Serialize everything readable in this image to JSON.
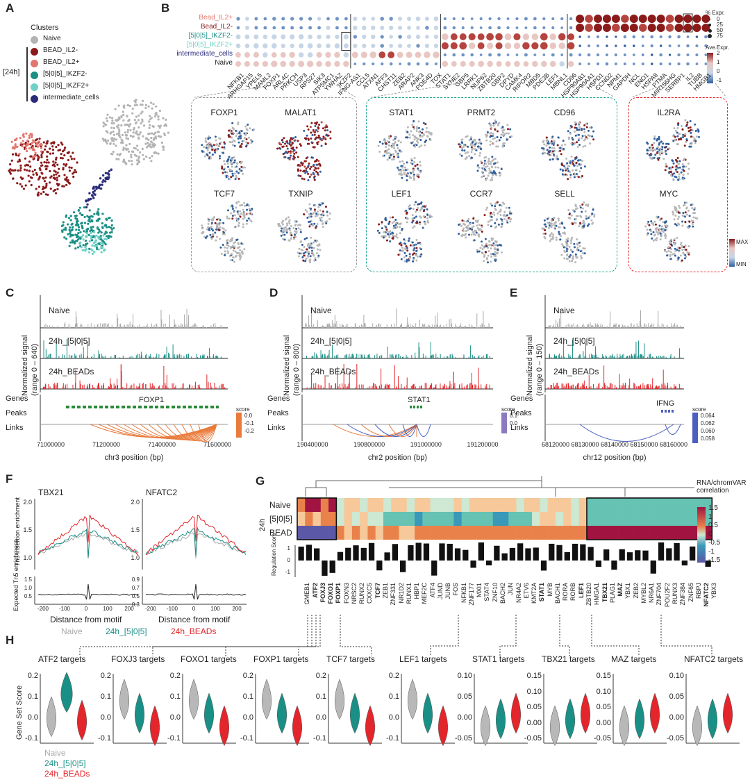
{
  "panel_letters": [
    "A",
    "B",
    "C",
    "D",
    "E",
    "F",
    "G",
    "H"
  ],
  "colors": {
    "naive": "#b3b3b3",
    "bead_il2m": "#8b1a1a",
    "bead_il2p": "#e3766e",
    "ikzf2m": "#1a8f85",
    "ikzf2p": "#6fd0c6",
    "intermediate": "#2b2d7a",
    "teal": "#1a8f85",
    "red": "#e3262b",
    "blue": "#4b5fbf",
    "orange": "#e97b3b"
  },
  "panelA": {
    "legend_title": "Clusters",
    "group_label": "[24h]",
    "items": [
      {
        "label": "Naive",
        "color": "#b3b3b3"
      },
      {
        "label": "BEAD_IL2-",
        "color": "#8b1a1a"
      },
      {
        "label": "BEAD_IL2+",
        "color": "#e3766e"
      },
      {
        "label": "[5|0|5]_IKZF2-",
        "color": "#1a8f85"
      },
      {
        "label": "[5|0|5]_IKZF2+",
        "color": "#6fd0c6"
      },
      {
        "label": "intermediate_cells",
        "color": "#2b2d7a"
      }
    ]
  },
  "panelB": {
    "row_labels": [
      "Bead_IL2+",
      "Bead_IL2-",
      "[5|0|5]_IKZF2-",
      "[5|0|5]_IKZF2+",
      "intermediate_cells",
      "Naive"
    ],
    "row_colors": [
      "#e3766e",
      "#8b1a1a",
      "#1a8f85",
      "#6fd0c6",
      "#2b2d7a",
      "#222222"
    ],
    "genes": [
      "NFKB1",
      "ARHGAP15",
      "YPEL5",
      "MAML2",
      "FOXP1",
      "ARL4C",
      "PRKCH",
      "USP3",
      "RPS27",
      "SIK3",
      "ATP5MC1",
      "YWHAZ",
      "IKZF2",
      "IFNG-AS1",
      "CCL5",
      "ATXN1",
      "AFF3",
      "CHST11",
      "ZEB2",
      "ARAP2",
      "ANK3",
      "PDE4D",
      "TOX",
      "STAT1",
      "SYNE2",
      "GBP5",
      "LRRK1",
      "NUP62",
      "ZBTB20",
      "GBP2",
      "DPYD",
      "CAMK4",
      "RIPOR2",
      "MBD5",
      "PDE3B",
      "LEF1",
      "MBNL1",
      "CD96",
      "HSP90AB1",
      "HSP90AA1",
      "HSPD1",
      "CCND2",
      "NPM1",
      "GAPDH",
      "NCL",
      "ENO1",
      "HSPA8",
      "PTMA",
      "MIR155HG",
      "SERBP1",
      "IL2",
      "TUBB",
      "HMGB1"
    ],
    "legend_size_title": "% Expr.",
    "legend_size_values": [
      "0",
      "25",
      "50",
      "75"
    ],
    "legend_color_title": "Ave.Expr.",
    "legend_color_ticks": [
      "2",
      "1",
      "0",
      "-1"
    ],
    "umap_genes_group1": [
      "FOXP1",
      "MALAT1",
      "TCF7",
      "TXNIP"
    ],
    "umap_genes_group2": [
      "STAT1",
      "PRMT2",
      "CD96",
      "LEF1",
      "CCR7",
      "SELL"
    ],
    "umap_genes_group3": [
      "IL2RA",
      "MYC"
    ],
    "scale_max": "MAX",
    "scale_min": "MIN"
  },
  "panelC": {
    "tracks": [
      "Naive",
      "24h_[5|0|5]",
      "24h_BEADs"
    ],
    "ylabel": "Normalized signal",
    "range": "(range 0 – 640)",
    "gene": "FOXP1",
    "row_labels": [
      "Genes",
      "Peaks",
      "Links"
    ],
    "score_title": "score",
    "score_ticks": [
      "0.0",
      "-0.1",
      "-0.2"
    ],
    "x_ticks": [
      "71000000",
      "71200000",
      "71400000",
      "71600000"
    ],
    "xlabel": "chr3 position (bp)"
  },
  "panelD": {
    "tracks": [
      "Naive",
      "24h_[5|0|5]",
      "24h_BEADs"
    ],
    "ylabel": "Normalized signal",
    "range": "(range 0 – 800)",
    "gene": "STAT1",
    "row_labels": [
      "Genes",
      "Peaks",
      "Links"
    ],
    "score_title": "score",
    "score_ticks": [
      "0.1",
      "0.0"
    ],
    "x_ticks": [
      "190400000",
      "190800000",
      "191000000",
      "191200000"
    ],
    "xlabel": "chr2 position (bp)"
  },
  "panelE": {
    "tracks": [
      "Naive",
      "24h_[5|0|5]",
      "24h_BEADs"
    ],
    "ylabel": "Normalized signal",
    "range": "(range 0 – 150)",
    "gene": "IFNG",
    "row_labels": [
      "Genes",
      "Peaks",
      "Links"
    ],
    "score_title": "score",
    "score_ticks": [
      "0.064",
      "0.062",
      "0.060",
      "0.058"
    ],
    "x_ticks": [
      "68120000",
      "68130000",
      "68140000",
      "68150000",
      "68160000"
    ],
    "xlabel": "chr12 position (bp)"
  },
  "panelF": {
    "motifs": [
      "TBX21",
      "NFATC2"
    ],
    "ylabel_top": "Tn5 insertion enrichment",
    "ylabel_bottom": "Expected Tn5 enrichment",
    "top_ticks_tbx": [
      "2.0",
      "1.5",
      "1.0"
    ],
    "top_ticks_nfat": [
      "2.0",
      "1.5",
      "1.0"
    ],
    "bottom_ticks_tbx": [
      "1.5",
      "1.0",
      "0.5"
    ],
    "bottom_ticks_nfat": [
      "0.9",
      "0.7",
      "0.5",
      "0.3"
    ],
    "x_ticks": [
      "-200",
      "-100",
      "0",
      "100",
      "200"
    ],
    "xlabel": "Distance from motif",
    "legend": [
      "Naive",
      "24h_[5|0|5]",
      "24h_BEADs"
    ]
  },
  "panelG": {
    "rows": [
      "Naive",
      "[5|0|5]",
      "BEAD"
    ],
    "group_label": "24h",
    "tfs": [
      "GMEB1",
      "ATF2",
      "FOXJ3",
      "FOXO1",
      "FOXP1",
      "FOXN3",
      "NRSC2",
      "RUNX2",
      "CXXC5",
      "TCF7",
      "ZEB1",
      "ZNF331",
      "NR1D2",
      "RUNX1",
      "HBP1",
      "MEF2C",
      "ATF4",
      "JUND",
      "JUNB",
      "FOS",
      "NFKB1",
      "ZNF177",
      "MXI1",
      "STAT4",
      "ZNF10",
      "BACH2",
      "JUN",
      "NR4A2",
      "ETV6",
      "KMT2A",
      "STAT1",
      "MYB",
      "BACH1",
      "RORA",
      "RORB",
      "LEF1",
      "ZBTB20",
      "HMGA1",
      "TBX21",
      "PLAG1",
      "MAZ",
      "YBX1",
      "ZEB2",
      "MYBL2",
      "NR6A1",
      "ZNF704",
      "POU2F2",
      "RUNX3",
      "ZNF384",
      "ZNF65",
      "RBPJ",
      "NFATC2",
      "YBX3"
    ],
    "bold_tfs": [
      "ATF2",
      "FOXJ3",
      "FOXO1",
      "FOXP1",
      "TCF7",
      "STAT1",
      "LEF1",
      "TBX21",
      "MAZ",
      "NFATC2"
    ],
    "legend_title": "RNA/chromVAR correlation",
    "legend_ticks": [
      "1.5",
      "1",
      "0.5",
      "0",
      "-0.5",
      "-1",
      "-1.5"
    ],
    "reg_label": "Regulation Score",
    "reg_ticks": [
      "1",
      "0",
      "-1"
    ]
  },
  "panelH": {
    "ylabel": "Gene Set Score",
    "plots": [
      {
        "title": "ATF2 targets",
        "ticks": [
          "0.2",
          "0.1",
          "0.0",
          "-0.1"
        ]
      },
      {
        "title": "FOXJ3 targets",
        "ticks": [
          "0.2",
          "0.1",
          "0.0",
          "-0.1"
        ]
      },
      {
        "title": "FOXO1 targets",
        "ticks": [
          "0.2",
          "0.1",
          "0.0",
          "-0.1"
        ]
      },
      {
        "title": "FOXP1 targets",
        "ticks": [
          "0.2",
          "0.1",
          "0.0",
          "-0.1"
        ]
      },
      {
        "title": "TCF7 targets",
        "ticks": [
          "0.2",
          "0.1",
          "0.0",
          "-0.1"
        ]
      },
      {
        "title": "LEF1 targets",
        "ticks": [
          "0.2",
          "0.1",
          "0.0",
          "-0.1"
        ]
      },
      {
        "title": "STAT1 targets",
        "ticks": [
          "0.10",
          "0.05",
          "0.00",
          "-0.05"
        ]
      },
      {
        "title": "TBX21 targets",
        "ticks": [
          "0.15",
          "0.10",
          "0.05",
          "0.00",
          "-0.05"
        ]
      },
      {
        "title": "MAZ targets",
        "ticks": [
          "0.15",
          "0.10",
          "0.05",
          "0.00",
          "-0.05"
        ]
      },
      {
        "title": "NFATC2 targets",
        "ticks": [
          "0.10",
          "0.05",
          "0.00",
          "-0.05"
        ]
      }
    ],
    "legend": [
      "Naive",
      "24h_[5|0|5]",
      "24h_BEADs"
    ]
  }
}
